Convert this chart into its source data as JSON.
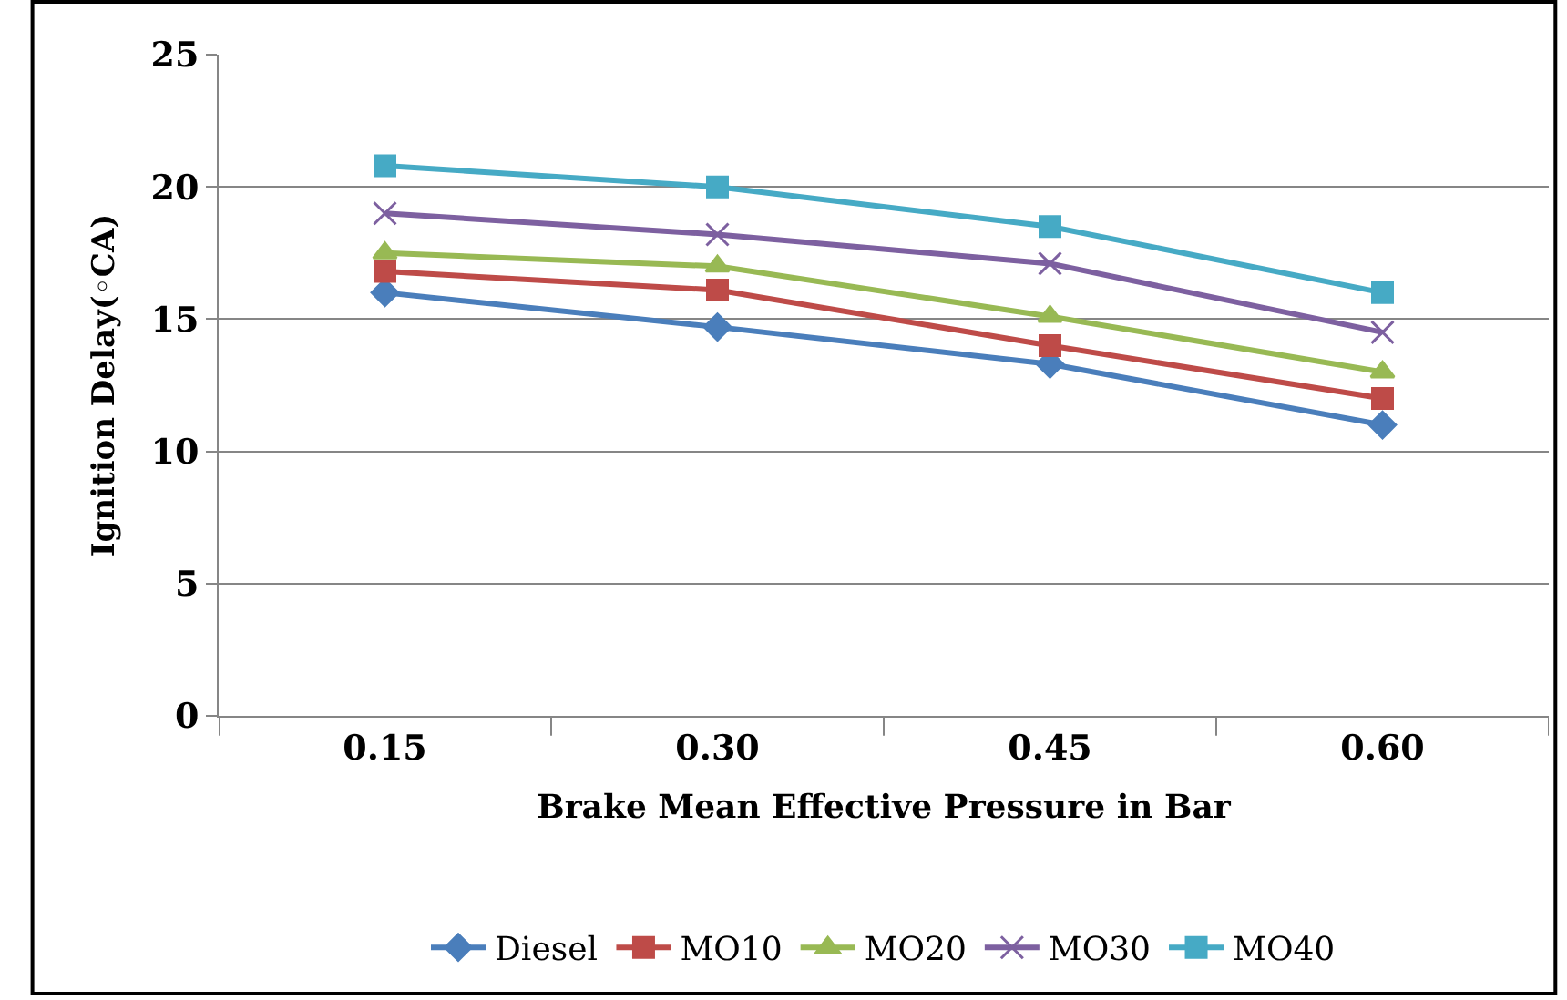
{
  "chart_data": {
    "type": "line",
    "xlabel": "Brake Mean Effective Pressure in Bar",
    "ylabel": "Ignition Delay(◦CA)",
    "categories": [
      "0.15",
      "0.30",
      "0.45",
      "0.60"
    ],
    "series": [
      {
        "name": "Diesel",
        "color": "#4a7ebb",
        "marker": "diamond",
        "values": [
          16,
          14.7,
          13.3,
          11
        ]
      },
      {
        "name": "MO10",
        "color": "#be4b48",
        "marker": "square",
        "values": [
          16.8,
          16.1,
          14,
          12
        ]
      },
      {
        "name": "MO20",
        "color": "#98b954",
        "marker": "triangle",
        "values": [
          17.5,
          17,
          15.1,
          13
        ]
      },
      {
        "name": "MO30",
        "color": "#7d60a0",
        "marker": "cross",
        "values": [
          19,
          18.2,
          17.1,
          14.5
        ]
      },
      {
        "name": "MO40",
        "color": "#46aac5",
        "marker": "square",
        "values": [
          20.8,
          20,
          18.5,
          16
        ]
      }
    ],
    "ylim": [
      0,
      25
    ],
    "yticks": [
      0,
      5,
      10,
      15,
      20,
      25
    ],
    "grid": "y",
    "legend": "bottom",
    "line_style": "solid"
  }
}
